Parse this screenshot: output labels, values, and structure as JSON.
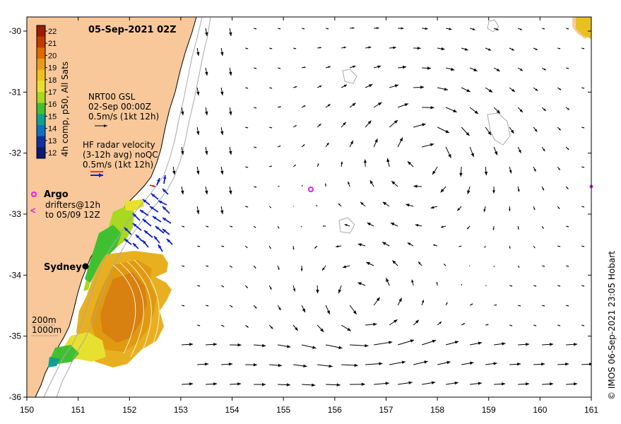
{
  "title": "05-Sep-2021 02Z",
  "colorbar": {
    "label": "4h comp, p50, All Sats",
    "ticks": [
      "22",
      "21",
      "20",
      "19",
      "18",
      "17",
      "16",
      "15",
      "14",
      "13",
      "12"
    ],
    "colors": [
      "#9c1c00",
      "#c23a00",
      "#e06a00",
      "#e89a20",
      "#f0c020",
      "#e8e030",
      "#a8d820",
      "#40c030",
      "#10a090",
      "#1070c0",
      "#1030a0",
      "#0a1a70"
    ]
  },
  "legend": {
    "model_name": "NRT00 GSL",
    "model_date": "02-Sep 00:00Z",
    "model_scale": "0.5m/s (1kt 12h)",
    "radar_line1": "HF radar velocity",
    "radar_line2": "(3-12h avg) noQC",
    "radar_scale": "0.5m/s (1kt 12h)",
    "argo_label": "Argo",
    "drifters_line1": "drifters@12h",
    "drifters_line2": "to 05/09 12Z",
    "depth_200": "200m",
    "depth_1000": "1000m"
  },
  "city": {
    "name": "Sydney"
  },
  "axes": {
    "x_ticks": [
      "150",
      "151",
      "152",
      "153",
      "154",
      "155",
      "156",
      "157",
      "158",
      "159",
      "160",
      "161"
    ],
    "y_ticks": [
      "-30",
      "-31",
      "-32",
      "-33",
      "-34",
      "-35",
      "-36"
    ]
  },
  "credit": "© IMOS 06-Sep-2021 23:05 Hobart",
  "colors": {
    "land": "#f8c89a",
    "model_arrow": "#000000",
    "radar_arrow": "#1020d0",
    "radar_arrow_alt": "#d01010",
    "argo": "#e020e0",
    "bathymetry": "#a8a8a8"
  }
}
